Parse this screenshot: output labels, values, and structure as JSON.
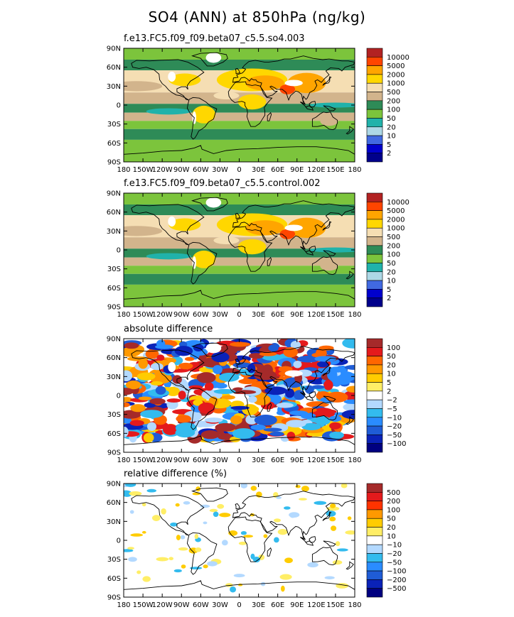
{
  "page": {
    "title": "SO4 (ANN) at 850hPa (ng/kg)"
  },
  "axes": {
    "lat_labels": [
      "90N",
      "60N",
      "30N",
      "0",
      "30S",
      "60S",
      "90S"
    ],
    "lon_labels": [
      "180",
      "150W",
      "120W",
      "90W",
      "60W",
      "30W",
      "0",
      "30E",
      "60E",
      "90E",
      "120E",
      "150E",
      "180"
    ]
  },
  "chart_data": [
    {
      "type": "heatmap",
      "title": "f.e13.FC5.f09_f09.beta07_c5.5.so4.003",
      "lat_range": [
        -90,
        90
      ],
      "lon_range": [
        -180,
        180
      ],
      "colorbar_levels": [
        "10000",
        "5000",
        "2000",
        "1000",
        "500",
        "200",
        "100",
        "50",
        "20",
        "10",
        "5",
        "2"
      ],
      "colorbar_colors": [
        "#b22222",
        "#ff4500",
        "#ffa500",
        "#ffd700",
        "#f5deb3",
        "#d2b48c",
        "#2e8b57",
        "#7cc43c",
        "#20b2aa",
        "#add8e6",
        "#4169e1",
        "#0000cd",
        "#00008b"
      ]
    },
    {
      "type": "heatmap",
      "title": "f.e13.FC5.f09_f09.beta07_c5.5.control.002",
      "lat_range": [
        -90,
        90
      ],
      "lon_range": [
        -180,
        180
      ],
      "colorbar_levels": [
        "10000",
        "5000",
        "2000",
        "1000",
        "500",
        "200",
        "100",
        "50",
        "20",
        "10",
        "5",
        "2"
      ],
      "colorbar_colors": [
        "#b22222",
        "#ff4500",
        "#ffa500",
        "#ffd700",
        "#f5deb3",
        "#d2b48c",
        "#2e8b57",
        "#7cc43c",
        "#20b2aa",
        "#add8e6",
        "#4169e1",
        "#0000cd",
        "#00008b"
      ]
    },
    {
      "type": "heatmap",
      "title": "absolute difference",
      "lat_range": [
        -90,
        90
      ],
      "lon_range": [
        -180,
        180
      ],
      "colorbar_levels": [
        "100",
        "50",
        "20",
        "10",
        "5",
        "2",
        "−2",
        "−5",
        "−10",
        "−20",
        "−50",
        "−100"
      ],
      "colorbar_colors": [
        "#a52a2a",
        "#e41a1c",
        "#ff6600",
        "#ff9900",
        "#ffcc00",
        "#ffee66",
        "#ffffff",
        "#b3d9ff",
        "#33bbee",
        "#2a8cff",
        "#1f5cd6",
        "#0a22b8",
        "#000080"
      ]
    },
    {
      "type": "heatmap",
      "title": "relative difference (%)",
      "lat_range": [
        -90,
        90
      ],
      "lon_range": [
        -180,
        180
      ],
      "colorbar_levels": [
        "500",
        "200",
        "100",
        "50",
        "20",
        "10",
        "−10",
        "−20",
        "−50",
        "−100",
        "−200",
        "−500"
      ],
      "colorbar_colors": [
        "#a52a2a",
        "#e41a1c",
        "#ff3300",
        "#ff9900",
        "#ffcc00",
        "#ffee66",
        "#ffffff",
        "#b3d9ff",
        "#33bbee",
        "#2a8cff",
        "#1f5cd6",
        "#0a22b8",
        "#000080"
      ]
    }
  ]
}
